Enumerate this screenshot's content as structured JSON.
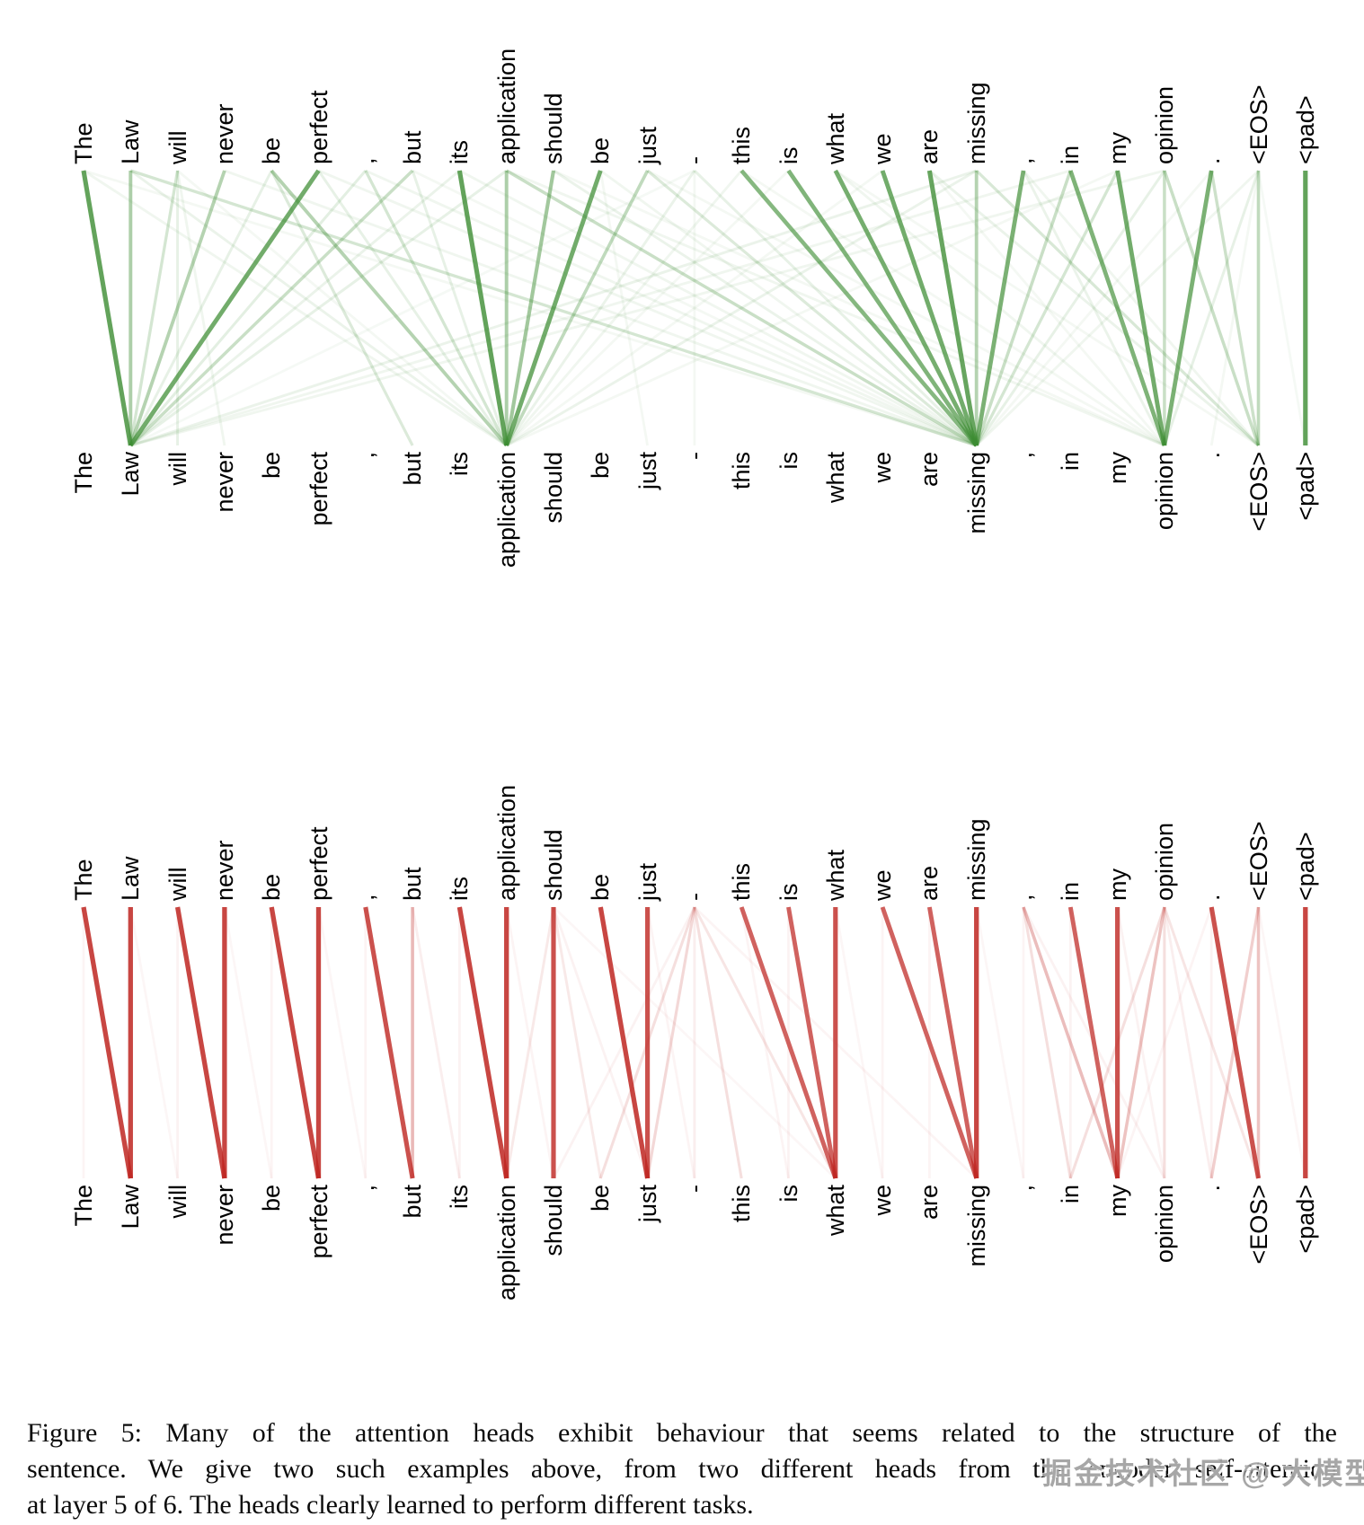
{
  "figure": {
    "caption_lines": [
      "Figure 5: Many of the attention heads exhibit behaviour that seems related to the structure of the",
      "sentence. We give two such examples above, from two different heads from the encoder self-attention",
      "at layer 5 of 6. The heads clearly learned to perform different tasks."
    ]
  },
  "watermark": {
    "text": "掘金技术社区 @ 大模型教程"
  },
  "chart_data": [
    {
      "type": "attention-bipartite",
      "head": "encoder-self-attention-head-green",
      "color": "#3c8c32",
      "tokens": [
        "The",
        "Law",
        "will",
        "never",
        "be",
        "perfect",
        ",",
        "but",
        "its",
        "application",
        "should",
        "be",
        "just",
        "-",
        "this",
        "is",
        "what",
        "we",
        "are",
        "missing",
        ",",
        "in",
        "my",
        "opinion",
        ".",
        "<EOS>",
        "<pad>"
      ],
      "edges": [
        [
          0,
          1,
          0.8
        ],
        [
          5,
          1,
          0.72
        ],
        [
          8,
          9,
          0.8
        ],
        [
          11,
          9,
          0.72
        ],
        [
          14,
          19,
          0.62
        ],
        [
          15,
          19,
          0.65
        ],
        [
          16,
          19,
          0.7
        ],
        [
          17,
          19,
          0.72
        ],
        [
          18,
          19,
          0.78
        ],
        [
          20,
          19,
          0.68
        ],
        [
          21,
          23,
          0.66
        ],
        [
          22,
          23,
          0.72
        ],
        [
          24,
          23,
          0.68
        ],
        [
          26,
          26,
          0.8
        ],
        [
          1,
          1,
          0.42
        ],
        [
          3,
          1,
          0.38
        ],
        [
          2,
          1,
          0.22
        ],
        [
          9,
          9,
          0.42
        ],
        [
          10,
          9,
          0.48
        ],
        [
          12,
          9,
          0.32
        ],
        [
          19,
          19,
          0.38
        ],
        [
          23,
          23,
          0.28
        ],
        [
          7,
          1,
          0.28
        ],
        [
          6,
          9,
          0.22
        ],
        [
          4,
          9,
          0.38
        ],
        [
          4,
          7,
          0.18
        ],
        [
          25,
          25,
          0.32
        ],
        [
          19,
          25,
          0.2
        ],
        [
          23,
          25,
          0.28
        ],
        [
          21,
          19,
          0.28
        ],
        [
          22,
          19,
          0.22
        ],
        [
          1,
          19,
          0.22
        ],
        [
          9,
          19,
          0.28
        ],
        [
          12,
          19,
          0.18
        ],
        [
          24,
          25,
          0.26
        ],
        [
          0,
          9,
          0.08
        ],
        [
          0,
          19,
          0.06
        ],
        [
          1,
          9,
          0.1
        ],
        [
          2,
          3,
          0.08
        ],
        [
          2,
          9,
          0.06
        ],
        [
          3,
          19,
          0.08
        ],
        [
          4,
          1,
          0.12
        ],
        [
          5,
          9,
          0.12
        ],
        [
          5,
          19,
          0.08
        ],
        [
          6,
          1,
          0.14
        ],
        [
          6,
          19,
          0.08
        ],
        [
          7,
          9,
          0.12
        ],
        [
          7,
          19,
          0.06
        ],
        [
          8,
          1,
          0.1
        ],
        [
          8,
          19,
          0.08
        ],
        [
          9,
          1,
          0.12
        ],
        [
          9,
          23,
          0.08
        ],
        [
          10,
          19,
          0.1
        ],
        [
          10,
          23,
          0.06
        ],
        [
          11,
          19,
          0.08
        ],
        [
          12,
          23,
          0.06
        ],
        [
          13,
          9,
          0.1
        ],
        [
          13,
          19,
          0.12
        ],
        [
          13,
          1,
          0.05
        ],
        [
          14,
          9,
          0.08
        ],
        [
          14,
          23,
          0.06
        ],
        [
          15,
          9,
          0.06
        ],
        [
          16,
          23,
          0.08
        ],
        [
          17,
          9,
          0.06
        ],
        [
          18,
          23,
          0.06
        ],
        [
          19,
          1,
          0.1
        ],
        [
          19,
          9,
          0.1
        ],
        [
          20,
          23,
          0.1
        ],
        [
          20,
          25,
          0.08
        ],
        [
          21,
          1,
          0.08
        ],
        [
          22,
          9,
          0.06
        ],
        [
          23,
          19,
          0.12
        ],
        [
          23,
          1,
          0.08
        ],
        [
          24,
          19,
          0.06
        ],
        [
          25,
          23,
          0.12
        ],
        [
          25,
          19,
          0.08
        ],
        [
          25,
          24,
          0.06
        ],
        [
          25,
          26,
          0.05
        ],
        [
          11,
          12,
          0.06
        ],
        [
          18,
          25,
          0.1
        ],
        [
          16,
          25,
          0.06
        ],
        [
          2,
          2,
          0.12
        ],
        [
          13,
          13,
          0.06
        ]
      ]
    },
    {
      "type": "attention-bipartite",
      "head": "encoder-self-attention-head-red",
      "color": "#be2621",
      "tokens": [
        "The",
        "Law",
        "will",
        "never",
        "be",
        "perfect",
        ",",
        "but",
        "its",
        "application",
        "should",
        "be",
        "just",
        "-",
        "this",
        "is",
        "what",
        "we",
        "are",
        "missing",
        ",",
        "in",
        "my",
        "opinion",
        ".",
        "<EOS>",
        "<pad>"
      ],
      "edges": [
        [
          0,
          1,
          0.85
        ],
        [
          1,
          1,
          0.85
        ],
        [
          2,
          3,
          0.85
        ],
        [
          3,
          3,
          0.85
        ],
        [
          4,
          5,
          0.85
        ],
        [
          5,
          5,
          0.85
        ],
        [
          6,
          7,
          0.8
        ],
        [
          8,
          9,
          0.85
        ],
        [
          9,
          9,
          0.85
        ],
        [
          10,
          10,
          0.8
        ],
        [
          11,
          12,
          0.85
        ],
        [
          12,
          12,
          0.8
        ],
        [
          14,
          16,
          0.72
        ],
        [
          15,
          16,
          0.72
        ],
        [
          16,
          16,
          0.8
        ],
        [
          17,
          19,
          0.72
        ],
        [
          18,
          19,
          0.72
        ],
        [
          19,
          19,
          0.85
        ],
        [
          21,
          22,
          0.72
        ],
        [
          22,
          22,
          0.8
        ],
        [
          24,
          25,
          0.8
        ],
        [
          26,
          26,
          0.85
        ],
        [
          7,
          7,
          0.32
        ],
        [
          20,
          22,
          0.3
        ],
        [
          23,
          22,
          0.28
        ],
        [
          25,
          25,
          0.28
        ],
        [
          25,
          24,
          0.22
        ],
        [
          13,
          12,
          0.18
        ],
        [
          13,
          14,
          0.15
        ],
        [
          13,
          16,
          0.12
        ],
        [
          13,
          11,
          0.15
        ],
        [
          23,
          21,
          0.15
        ],
        [
          23,
          23,
          0.15
        ],
        [
          20,
          21,
          0.15
        ],
        [
          23,
          25,
          0.12
        ],
        [
          10,
          9,
          0.1
        ],
        [
          10,
          11,
          0.1
        ],
        [
          0,
          0,
          0.05
        ],
        [
          2,
          2,
          0.06
        ],
        [
          4,
          4,
          0.05
        ],
        [
          8,
          8,
          0.06
        ],
        [
          1,
          2,
          0.04
        ],
        [
          3,
          4,
          0.04
        ],
        [
          5,
          6,
          0.04
        ],
        [
          12,
          13,
          0.05
        ],
        [
          16,
          17,
          0.04
        ],
        [
          19,
          20,
          0.04
        ],
        [
          22,
          23,
          0.06
        ],
        [
          21,
          21,
          0.06
        ],
        [
          24,
          24,
          0.06
        ],
        [
          25,
          26,
          0.04
        ],
        [
          23,
          24,
          0.08
        ],
        [
          13,
          13,
          0.08
        ],
        [
          6,
          6,
          0.05
        ],
        [
          20,
          20,
          0.05
        ],
        [
          14,
          15,
          0.05
        ],
        [
          15,
          15,
          0.06
        ],
        [
          17,
          17,
          0.05
        ],
        [
          18,
          18,
          0.05
        ],
        [
          10,
          16,
          0.04
        ],
        [
          13,
          19,
          0.05
        ],
        [
          20,
          23,
          0.06
        ],
        [
          24,
          22,
          0.05
        ],
        [
          9,
          10,
          0.05
        ],
        [
          7,
          8,
          0.08
        ],
        [
          10,
          12,
          0.06
        ],
        [
          13,
          10,
          0.06
        ]
      ]
    }
  ]
}
